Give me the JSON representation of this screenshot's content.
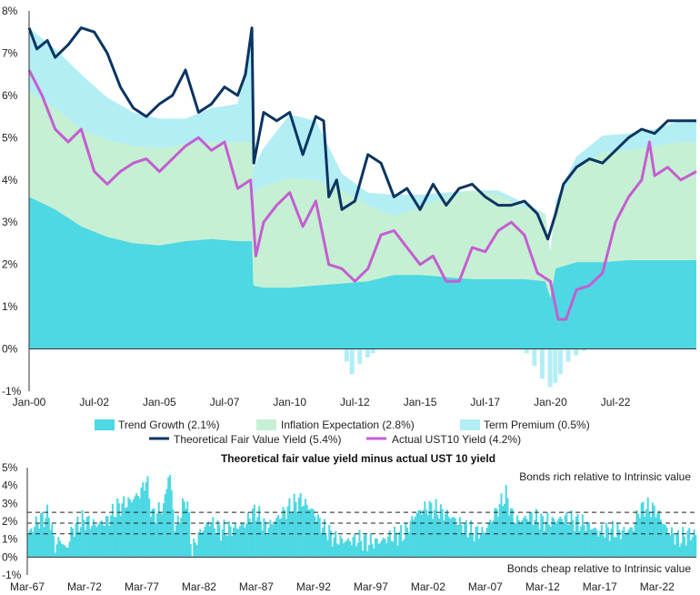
{
  "colors": {
    "trend_growth": "#4dd8e3",
    "inflation_expectation": "#c6f0d4",
    "term_premium": "#b3eef5",
    "fair_value": "#0b3561",
    "actual_yield": "#c45ed0",
    "lower_bars": "#4dd8e3"
  },
  "chart_data": [
    {
      "type": "area",
      "title": "",
      "x_ticks": [
        "Jan-00",
        "Jul-02",
        "Jan-05",
        "Jul-07",
        "Jan-10",
        "Jul-12",
        "Jan-15",
        "Jul-17",
        "Jan-20",
        "Jul-22"
      ],
      "x_range": [
        2000.0,
        2025.6
      ],
      "ylim": [
        -1,
        8
      ],
      "y_ticks": [
        "-1%",
        "0%",
        "1%",
        "2%",
        "3%",
        "4%",
        "5%",
        "6%",
        "7%",
        "8%"
      ],
      "legend": {
        "trend_growth": "Trend Growth (2.1%)",
        "inflation_expectation": "Inflation Expectation (2.8%)",
        "term_premium": "Term Premium (0.5%)",
        "fair_value": "Theoretical Fair Value Yield (5.4%)",
        "actual_yield": "Actual UST10 Yield (4.2%)"
      },
      "series": [
        {
          "name": "Trend Growth (2.1%)",
          "type": "area",
          "x": [
            2000.0,
            2001.0,
            2002.0,
            2003.0,
            2004.0,
            2005.0,
            2006.0,
            2007.0,
            2008.0,
            2008.55,
            2008.6,
            2009.0,
            2010.0,
            2011.0,
            2012.0,
            2013.0,
            2014.0,
            2015.0,
            2016.0,
            2017.0,
            2018.0,
            2019.0,
            2019.8,
            2020.0,
            2020.2,
            2021.0,
            2022.0,
            2023.0,
            2024.0,
            2025.0,
            2025.6
          ],
          "values": [
            3.6,
            3.3,
            2.9,
            2.65,
            2.5,
            2.45,
            2.55,
            2.6,
            2.55,
            2.55,
            1.5,
            1.45,
            1.45,
            1.5,
            1.55,
            1.6,
            1.75,
            1.75,
            1.7,
            1.65,
            1.65,
            1.65,
            1.6,
            1.2,
            1.9,
            2.05,
            2.05,
            2.1,
            2.1,
            2.1,
            2.1
          ]
        },
        {
          "name": "Inflation Expectation (2.8%)",
          "type": "area",
          "x": [
            2000.0,
            2001.0,
            2002.0,
            2003.0,
            2004.0,
            2005.0,
            2006.0,
            2007.0,
            2008.0,
            2008.55,
            2008.6,
            2009.0,
            2010.0,
            2011.0,
            2012.0,
            2013.0,
            2014.0,
            2015.0,
            2016.0,
            2017.0,
            2018.0,
            2019.0,
            2019.8,
            2020.0,
            2020.2,
            2021.0,
            2022.0,
            2023.0,
            2024.0,
            2025.0,
            2025.6
          ],
          "values": [
            2.5,
            2.4,
            2.3,
            2.3,
            2.3,
            2.3,
            2.3,
            2.3,
            2.35,
            2.35,
            2.2,
            2.4,
            2.6,
            2.5,
            2.2,
            1.8,
            1.4,
            1.6,
            1.9,
            2.1,
            2.0,
            1.7,
            1.6,
            1.0,
            1.5,
            2.2,
            2.6,
            2.6,
            2.7,
            2.8,
            2.8
          ]
        },
        {
          "name": "Term Premium (0.5%)",
          "type": "area",
          "x": [
            2000.0,
            2001.0,
            2002.0,
            2003.0,
            2004.0,
            2005.0,
            2006.0,
            2007.0,
            2008.0,
            2008.55,
            2008.6,
            2009.0,
            2010.0,
            2011.0,
            2012.0,
            2013.0,
            2014.0,
            2015.0,
            2016.0,
            2017.0,
            2018.0,
            2019.0,
            2019.8,
            2020.0,
            2020.2,
            2021.0,
            2022.0,
            2023.0,
            2024.0,
            2025.0,
            2025.6
          ],
          "values": [
            1.5,
            1.4,
            1.3,
            1.0,
            0.8,
            0.7,
            0.6,
            0.8,
            0.9,
            2.6,
            0.6,
            0.9,
            1.5,
            1.4,
            0.4,
            0.3,
            0.5,
            0.3,
            0.1,
            0.0,
            0.1,
            0.1,
            0.0,
            0.1,
            0.1,
            0.3,
            0.4,
            0.4,
            0.4,
            0.5,
            0.5
          ]
        },
        {
          "name": "Theoretical Fair Value Yield (5.4%)",
          "type": "line",
          "x": [
            2000.0,
            2000.3,
            2000.7,
            2001.0,
            2001.5,
            2002.0,
            2002.5,
            2003.0,
            2003.5,
            2004.0,
            2004.5,
            2005.0,
            2005.5,
            2006.0,
            2006.5,
            2007.0,
            2007.5,
            2008.0,
            2008.3,
            2008.55,
            2008.62,
            2009.0,
            2009.5,
            2010.0,
            2010.5,
            2011.0,
            2011.3,
            2011.5,
            2011.8,
            2012.0,
            2012.5,
            2013.0,
            2013.5,
            2014.0,
            2014.5,
            2015.0,
            2015.5,
            2016.0,
            2016.5,
            2017.0,
            2017.5,
            2018.0,
            2018.5,
            2019.0,
            2019.5,
            2019.9,
            2020.2,
            2020.5,
            2021.0,
            2021.5,
            2022.0,
            2022.5,
            2023.0,
            2023.5,
            2024.0,
            2024.5,
            2025.0,
            2025.6
          ],
          "values": [
            7.6,
            7.1,
            7.3,
            6.9,
            7.2,
            7.6,
            7.5,
            7.0,
            6.2,
            5.7,
            5.5,
            5.8,
            6.0,
            6.6,
            5.6,
            5.8,
            6.2,
            6.0,
            6.5,
            7.6,
            4.4,
            5.6,
            5.4,
            5.6,
            4.6,
            5.5,
            5.4,
            3.6,
            4.0,
            3.3,
            3.5,
            4.6,
            4.4,
            3.6,
            3.8,
            3.3,
            3.9,
            3.4,
            3.8,
            3.9,
            3.6,
            3.4,
            3.4,
            3.5,
            3.2,
            2.6,
            3.2,
            3.9,
            4.3,
            4.5,
            4.4,
            4.7,
            5.0,
            5.2,
            5.1,
            5.4,
            5.4,
            5.4
          ]
        },
        {
          "name": "Actual UST10 Yield (4.2%)",
          "type": "line",
          "x": [
            2000.0,
            2000.5,
            2001.0,
            2001.5,
            2002.0,
            2002.5,
            2003.0,
            2003.5,
            2004.0,
            2004.5,
            2005.0,
            2005.5,
            2006.0,
            2006.5,
            2007.0,
            2007.5,
            2008.0,
            2008.5,
            2008.7,
            2009.0,
            2009.5,
            2010.0,
            2010.5,
            2011.0,
            2011.5,
            2012.0,
            2012.5,
            2013.0,
            2013.5,
            2014.0,
            2014.5,
            2015.0,
            2015.5,
            2016.0,
            2016.5,
            2017.0,
            2017.5,
            2018.0,
            2018.5,
            2019.0,
            2019.5,
            2020.0,
            2020.3,
            2020.6,
            2021.0,
            2021.5,
            2022.0,
            2022.5,
            2023.0,
            2023.5,
            2023.8,
            2024.0,
            2024.5,
            2025.0,
            2025.6
          ],
          "values": [
            6.6,
            6.0,
            5.2,
            4.9,
            5.2,
            4.2,
            3.9,
            4.2,
            4.4,
            4.5,
            4.2,
            4.5,
            4.8,
            5.0,
            4.7,
            4.9,
            3.8,
            4.0,
            2.2,
            3.0,
            3.4,
            3.7,
            2.9,
            3.5,
            2.0,
            1.9,
            1.6,
            1.9,
            2.7,
            2.8,
            2.4,
            2.0,
            2.2,
            1.6,
            1.6,
            2.4,
            2.3,
            2.8,
            3.0,
            2.7,
            1.8,
            1.6,
            0.7,
            0.7,
            1.4,
            1.5,
            1.8,
            3.0,
            3.6,
            4.0,
            4.9,
            4.1,
            4.3,
            4.0,
            4.2
          ]
        }
      ]
    },
    {
      "type": "bar",
      "title": "Theoretical fair value yield minus actual UST 10 yield",
      "x_ticks": [
        "Mar-67",
        "Mar-72",
        "Mar-77",
        "Mar-82",
        "Mar-87",
        "Mar-92",
        "Mar-97",
        "Mar-02",
        "Mar-07",
        "Mar-12",
        "Mar-17",
        "Mar-22"
      ],
      "x_range": [
        1967.17,
        2025.6
      ],
      "ylim": [
        -1,
        5
      ],
      "y_ticks": [
        "-1%",
        "0%",
        "1%",
        "2%",
        "3%",
        "4%",
        "5%"
      ],
      "reference_lines": [
        1.3,
        1.9,
        2.5
      ],
      "annotations": {
        "top": "Bonds rich relative to Intrinsic value",
        "bottom": "Bonds cheap relative to Intrinsic value"
      },
      "x": [
        1967.2,
        1968.0,
        1969.0,
        1969.5,
        1970.0,
        1970.5,
        1971.0,
        1972.0,
        1973.0,
        1974.0,
        1975.0,
        1976.0,
        1977.0,
        1977.5,
        1978.0,
        1979.0,
        1979.5,
        1980.0,
        1981.0,
        1981.5,
        1982.0,
        1983.0,
        1984.0,
        1985.0,
        1986.0,
        1987.0,
        1988.0,
        1989.0,
        1990.0,
        1991.0,
        1992.0,
        1993.0,
        1994.0,
        1995.0,
        1996.0,
        1997.0,
        1998.0,
        1999.0,
        2000.0,
        2001.0,
        2002.0,
        2003.0,
        2004.0,
        2005.0,
        2006.0,
        2007.0,
        2008.0,
        2008.9,
        2009.5,
        2010.0,
        2011.0,
        2012.0,
        2013.0,
        2014.0,
        2015.0,
        2016.0,
        2017.0,
        2018.0,
        2019.0,
        2020.0,
        2020.5,
        2021.0,
        2022.0,
        2023.0,
        2024.0,
        2025.0,
        2025.6
      ],
      "values": [
        1.3,
        2.0,
        2.4,
        0.6,
        1.0,
        0.4,
        1.5,
        2.1,
        1.8,
        2.0,
        2.8,
        3.1,
        3.6,
        4.4,
        2.3,
        2.8,
        4.9,
        1.5,
        3.4,
        0.3,
        1.2,
        2.0,
        1.5,
        1.6,
        1.8,
        2.6,
        1.6,
        2.2,
        2.8,
        3.2,
        2.6,
        1.6,
        1.0,
        0.9,
        1.0,
        0.8,
        0.9,
        1.2,
        1.3,
        2.4,
        2.8,
        2.6,
        2.3,
        1.8,
        1.4,
        1.4,
        2.5,
        3.5,
        2.2,
        2.0,
        2.3,
        2.0,
        2.0,
        2.2,
        2.0,
        1.8,
        1.4,
        1.5,
        1.4,
        1.6,
        2.6,
        2.8,
        2.6,
        1.5,
        1.0,
        1.3,
        1.2
      ]
    }
  ]
}
